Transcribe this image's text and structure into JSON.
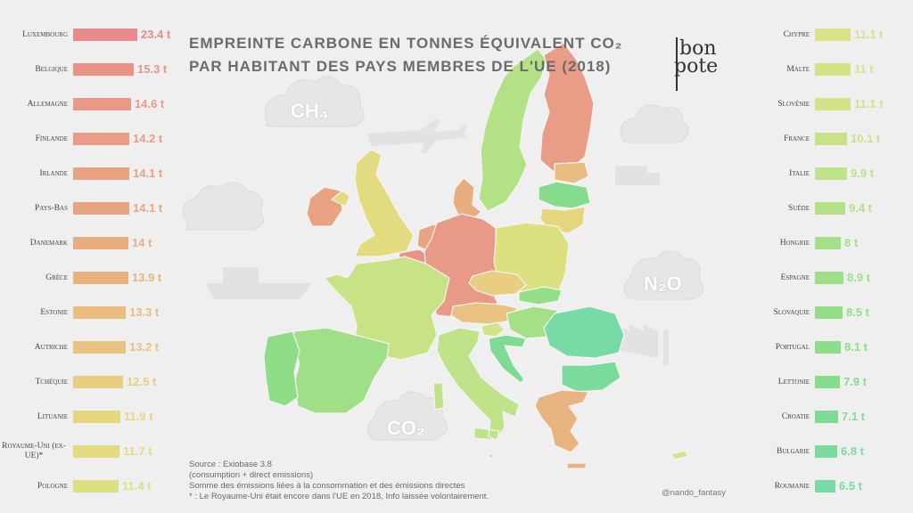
{
  "title_line1": "EMPREINTE CARBONE EN TONNES ÉQUIVALENT CO₂",
  "title_line2": "PAR HABITANT DES PAYS MEMBRES DE L'UE (2018)",
  "logo": {
    "line1": "bon",
    "line2": "pote"
  },
  "gas_labels": {
    "ch4": "CH₄",
    "n2o": "N₂O",
    "co2": "CO₂"
  },
  "source": {
    "line1": "Source : Exiobase 3.8",
    "line2": "(consumption + direct emissions)",
    "line3": "Somme des émissions liées à la consommation et des émissions directes",
    "line4": "* : Le Royaume-Uni était encore dans l'UE en 2018, Info laissée volontairement."
  },
  "handle": "@nando_fantasy",
  "chart_data": {
    "type": "bar",
    "unit": "t",
    "max_value": 23.4,
    "left": [
      {
        "country": "Luxembourg",
        "value": 23.4,
        "label": "23.4 t",
        "color": "#e98a8a"
      },
      {
        "country": "Belgique",
        "value": 15.3,
        "label": "15.3 t",
        "color": "#e99286"
      },
      {
        "country": "Allemagne",
        "value": 14.6,
        "label": "14.6 t",
        "color": "#e99a86"
      },
      {
        "country": "Finlande",
        "value": 14.2,
        "label": "14.2 t",
        "color": "#e99c86"
      },
      {
        "country": "Irlande",
        "value": 14.1,
        "label": "14.1 t",
        "color": "#e9a282"
      },
      {
        "country": "Pays-Bas",
        "value": 14.1,
        "label": "14.1 t",
        "color": "#e9a57f"
      },
      {
        "country": "Danemark",
        "value": 14,
        "label": "14 t",
        "color": "#e9ae80"
      },
      {
        "country": "Grèce",
        "value": 13.9,
        "label": "13.9 t",
        "color": "#e9b37f"
      },
      {
        "country": "Estonie",
        "value": 13.3,
        "label": "13.3 t",
        "color": "#e9bd80"
      },
      {
        "country": "Autriche",
        "value": 13.2,
        "label": "13.2 t",
        "color": "#e9c282"
      },
      {
        "country": "Tchéquie",
        "value": 12.5,
        "label": "12.5 t",
        "color": "#e9cd80"
      },
      {
        "country": "Lituanie",
        "value": 11.9,
        "label": "11.9 t",
        "color": "#e6d67e"
      },
      {
        "country": "Royaume-Uni (ex-UE)*",
        "value": 11.7,
        "label": "11.7 t",
        "color": "#e3db80"
      },
      {
        "country": "Pologne",
        "value": 11.4,
        "label": "11.4 t",
        "color": "#dde080"
      }
    ],
    "right": [
      {
        "country": "Chypre",
        "value": 11.1,
        "label": "11.1 t",
        "color": "#d9e285"
      },
      {
        "country": "Malte",
        "value": 11,
        "label": "11 t",
        "color": "#d6e385"
      },
      {
        "country": "Slovénie",
        "value": 11.1,
        "label": "11.1 t",
        "color": "#d3e388"
      },
      {
        "country": "France",
        "value": 10.1,
        "label": "10.1 t",
        "color": "#c7e386"
      },
      {
        "country": "Italie",
        "value": 9.9,
        "label": "9.9 t",
        "color": "#bee388"
      },
      {
        "country": "Suède",
        "value": 9.4,
        "label": "9.4 t",
        "color": "#b2e186"
      },
      {
        "country": "Hongrie",
        "value": 8,
        "label": "8 t",
        "color": "#a4e086"
      },
      {
        "country": "Espagne",
        "value": 8.9,
        "label": "8.9 t",
        "color": "#9fdf87"
      },
      {
        "country": "Slovaquie",
        "value": 8.5,
        "label": "8.5 t",
        "color": "#94de88"
      },
      {
        "country": "Portugal",
        "value": 8.1,
        "label": "8.1 t",
        "color": "#8ddd89"
      },
      {
        "country": "Lettonie",
        "value": 7.9,
        "label": "7.9 t",
        "color": "#86dc8d"
      },
      {
        "country": "Croatie",
        "value": 7.1,
        "label": "7.1 t",
        "color": "#7fdb94"
      },
      {
        "country": "Bulgarie",
        "value": 6.8,
        "label": "6.8 t",
        "color": "#7bdb9c"
      },
      {
        "country": "Roumanie",
        "value": 6.5,
        "label": "6.5 t",
        "color": "#78daa5"
      }
    ]
  },
  "map_colors": {
    "luxembourg": "#e98a8a",
    "belgium": "#e99286",
    "germany": "#e99a86",
    "finland": "#e99c86",
    "ireland": "#e9a282",
    "netherlands": "#e9a57f",
    "denmark": "#e9ae80",
    "greece": "#e9b37f",
    "estonia": "#e9bd80",
    "austria": "#e9c282",
    "czechia": "#e9cd80",
    "lithuania": "#e6d67e",
    "uk": "#e3db80",
    "poland": "#dde080",
    "cyprus": "#d9e285",
    "slovenia": "#d3e388",
    "france": "#c7e386",
    "italy": "#bee388",
    "sweden": "#b2e186",
    "hungary": "#a4e086",
    "spain": "#9fdf87",
    "slovakia": "#94de88",
    "portugal": "#8ddd89",
    "latvia": "#86dc8d",
    "croatia": "#7fdb94",
    "bulgaria": "#7bdb9c",
    "romania": "#78daa5"
  }
}
